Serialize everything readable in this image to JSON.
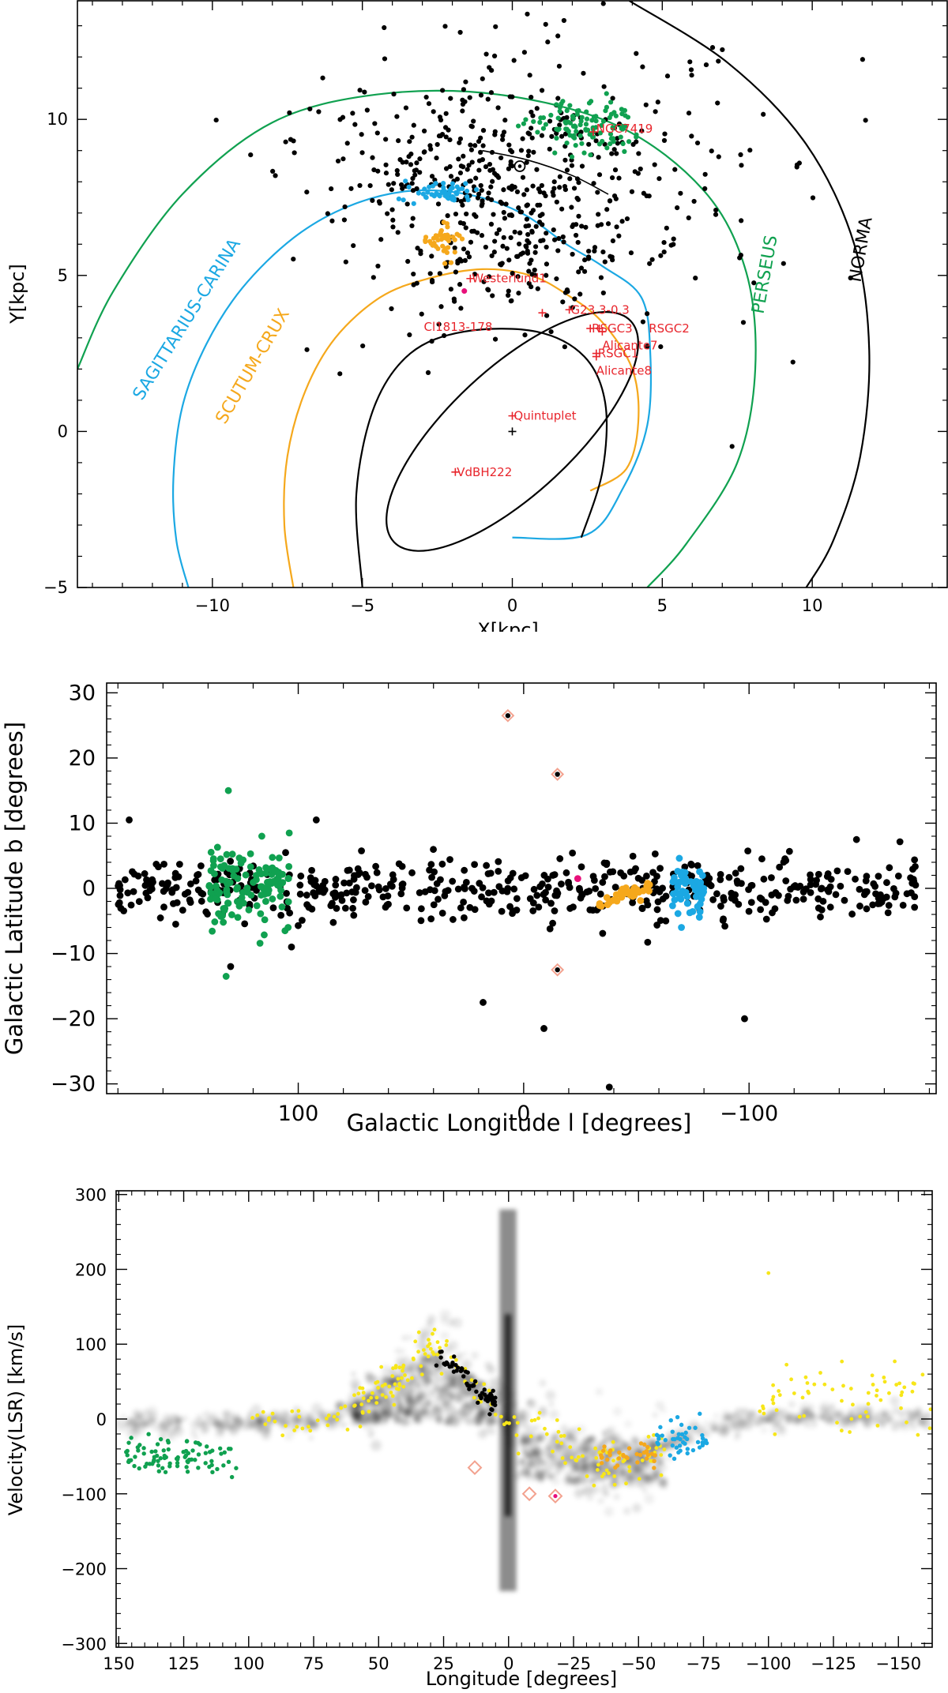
{
  "colors": {
    "black": "#000000",
    "green": "#10a150",
    "cyan": "#1ba8e3",
    "orange": "#f5a81c",
    "yellow": "#f7e619",
    "red": "#e8252c",
    "magenta": "#e8107a",
    "salmon": "#f3a28f"
  },
  "chart_data": [
    {
      "id": "galactic_map",
      "type": "scatter",
      "title": "",
      "xlabel": "X[kpc]",
      "ylabel": "Y[kpc]",
      "xlim": [
        -14.5,
        14.5
      ],
      "ylim": [
        -5.0,
        13.8
      ],
      "x_ticks": [
        -10,
        -5,
        0,
        5,
        10
      ],
      "y_ticks": [
        -5,
        0,
        5,
        10
      ],
      "arms": [
        {
          "name": "SAGITTARIUS-CARINA",
          "color": "cyan",
          "label_x": -10.7,
          "label_y": 3.5,
          "label_angle": -58,
          "path": [
            [
              -10.8,
              -5.0
            ],
            [
              -11.2,
              -3.5
            ],
            [
              -11.3,
              -1.5
            ],
            [
              -11.0,
              0.8
            ],
            [
              -10.2,
              2.8
            ],
            [
              -9.0,
              4.6
            ],
            [
              -7.3,
              6.2
            ],
            [
              -5.5,
              7.2
            ],
            [
              -3.5,
              7.7
            ],
            [
              -1.5,
              7.6
            ],
            [
              0.3,
              7.0
            ],
            [
              1.8,
              6.0
            ],
            [
              3.0,
              5.3
            ],
            [
              4.3,
              4.3
            ],
            [
              4.6,
              2.5
            ],
            [
              4.5,
              0.2
            ],
            [
              3.7,
              -1.8
            ],
            [
              2.5,
              -3.3
            ],
            [
              0.0,
              -3.4
            ]
          ]
        },
        {
          "name": "SCUTUM-CRUX",
          "color": "orange",
          "label_x": -8.5,
          "label_y": 2.0,
          "label_angle": -60,
          "path": [
            [
              -7.3,
              -5.0
            ],
            [
              -7.6,
              -3.0
            ],
            [
              -7.5,
              -0.8
            ],
            [
              -6.9,
              1.3
            ],
            [
              -5.9,
              3.0
            ],
            [
              -4.4,
              4.3
            ],
            [
              -2.8,
              4.9
            ],
            [
              -1.0,
              5.2
            ],
            [
              0.6,
              5.0
            ],
            [
              1.8,
              4.4
            ],
            [
              3.0,
              3.5
            ],
            [
              4.0,
              2.0
            ],
            [
              4.2,
              0.3
            ],
            [
              3.8,
              -1.2
            ],
            [
              2.6,
              -1.9
            ]
          ]
        },
        {
          "name": "PERSEUS",
          "color": "green",
          "label_x": 8.6,
          "label_y": 5.0,
          "label_angle": -80,
          "path": [
            [
              -14.5,
              2.0
            ],
            [
              -13.3,
              4.5
            ],
            [
              -11.0,
              7.6
            ],
            [
              -8.0,
              9.9
            ],
            [
              -4.5,
              10.8
            ],
            [
              -0.5,
              10.8
            ],
            [
              3.5,
              9.8
            ],
            [
              6.4,
              7.7
            ],
            [
              7.8,
              5.1
            ],
            [
              8.1,
              2.0
            ],
            [
              7.5,
              -1.0
            ],
            [
              5.8,
              -3.6
            ],
            [
              4.5,
              -5.0
            ]
          ]
        },
        {
          "name": "NORMA",
          "color": "black",
          "label_x": 11.8,
          "label_y": 5.8,
          "label_angle": -80,
          "path": [
            [
              3.9,
              13.8
            ],
            [
              7.2,
              11.8
            ],
            [
              9.8,
              9.2
            ],
            [
              11.4,
              6.0
            ],
            [
              11.9,
              2.6
            ],
            [
              11.6,
              -0.8
            ],
            [
              10.7,
              -3.5
            ],
            [
              9.8,
              -5.0
            ]
          ]
        },
        {
          "name": "inner",
          "color": "black",
          "label_x": null,
          "label_y": null,
          "label_angle": 0,
          "path": [
            [
              -5.0,
              -5.0
            ],
            [
              -5.2,
              -2.0
            ],
            [
              -4.6,
              0.8
            ],
            [
              -3.4,
              2.5
            ],
            [
              -1.6,
              3.2
            ],
            [
              0.8,
              3.2
            ],
            [
              2.4,
              2.4
            ],
            [
              3.1,
              0.9
            ],
            [
              3.0,
              -1.3
            ],
            [
              2.3,
              -3.4
            ]
          ]
        }
      ],
      "bar_ellipse": {
        "cx": 0.0,
        "cy": 0.0,
        "rx": 5.4,
        "ry": 2.0,
        "angle_deg": 43
      },
      "clusters": [
        {
          "name": "NGC7419",
          "x": 2.7,
          "y": 9.6,
          "label_dx": 0.1,
          "label_dy": 0.1
        },
        {
          "name": "Westerlund1",
          "x": -1.4,
          "y": 4.9,
          "label_dx": 0.05,
          "label_dy": 0.0
        },
        {
          "name": "Cl1813-178",
          "x": 1.0,
          "y": 3.8,
          "label_dx": -3.95,
          "label_dy": -0.45
        },
        {
          "name": "G23.3-0.3",
          "x": 1.9,
          "y": 3.9,
          "label_dx": 0.05,
          "label_dy": 0.0
        },
        {
          "name": "RSGC3",
          "x": 2.6,
          "y": 3.3,
          "label_dx": 0.05,
          "label_dy": 0.0
        },
        {
          "name": "RSGC2",
          "x": 2.9,
          "y": 3.3,
          "label_dx": 1.65,
          "label_dy": 0.0
        },
        {
          "name": "Alicante7",
          "x": 3.0,
          "y": 3.2,
          "label_dx": 0.0,
          "label_dy": -0.45
        },
        {
          "name": "RSGC1",
          "x": 2.8,
          "y": 2.5,
          "label_dx": 0.05,
          "label_dy": 0.0
        },
        {
          "name": "Alicante8",
          "x": 2.8,
          "y": 2.4,
          "label_dx": 0.0,
          "label_dy": -0.45
        },
        {
          "name": "Quintuplet",
          "x": 0.0,
          "y": 0.5,
          "label_dx": 0.05,
          "label_dy": 0.0
        },
        {
          "name": "VdBH222",
          "x": -1.9,
          "y": -1.3,
          "label_dx": 0.05,
          "label_dy": 0.0
        }
      ],
      "sun": {
        "x": 0.25,
        "y": 8.5
      },
      "center_marker": {
        "x": 0.0,
        "y": 0.0
      },
      "sun_arc": [
        [
          -1.0,
          9.0
        ],
        [
          0.5,
          8.7
        ],
        [
          2.0,
          8.2
        ],
        [
          3.2,
          7.6
        ]
      ],
      "series": [
        {
          "name": "black",
          "color": "black",
          "n": 620,
          "regions": [
            {
              "cx": 0.0,
              "cy": 6.3,
              "sx": 2.2,
              "sy": 1.4,
              "w": 0.4
            },
            {
              "cx": -1.2,
              "cy": 8.6,
              "sx": 2.6,
              "sy": 1.1,
              "w": 0.25
            },
            {
              "cx": 0.6,
              "cy": 9.5,
              "sx": 3.8,
              "sy": 1.8,
              "w": 0.2
            },
            {
              "cx": 1.5,
              "cy": 7.8,
              "sx": 4.2,
              "sy": 2.8,
              "w": 0.15
            }
          ]
        },
        {
          "name": "green",
          "color": "green",
          "n": 110,
          "regions": [
            {
              "cx": 2.4,
              "cy": 9.8,
              "sx": 0.9,
              "sy": 0.45,
              "w": 1
            }
          ]
        },
        {
          "name": "cyan",
          "color": "cyan",
          "n": 50,
          "regions": [
            {
              "cx": -2.4,
              "cy": 7.65,
              "sx": 0.55,
              "sy": 0.18,
              "w": 1
            }
          ]
        },
        {
          "name": "orange",
          "color": "orange",
          "n": 40,
          "regions": [
            {
              "cx": -2.3,
              "cy": 6.1,
              "sx": 0.35,
              "sy": 0.3,
              "w": 1
            }
          ]
        }
      ]
    },
    {
      "id": "galactic_lb",
      "type": "scatter",
      "title": "",
      "xlabel": "Galactic Longitude l [degrees]",
      "ylabel": "Galactic Latitude b [degrees]",
      "xlim": [
        185,
        -183
      ],
      "ylim": [
        -31.5,
        31.5
      ],
      "x_ticks": [
        100,
        0,
        -100
      ],
      "x_tick_labels": [
        "100",
        "0",
        "−100"
      ],
      "y_ticks": [
        -30,
        -20,
        -10,
        0,
        10,
        20,
        30
      ],
      "y_tick_labels": [
        "−30",
        "−20",
        "−10",
        "0",
        "10",
        "20",
        "30"
      ],
      "series": [
        {
          "name": "black",
          "color": "black",
          "n": 520,
          "l_range": [
            -175,
            180
          ],
          "b_sigma": 2.2
        },
        {
          "name": "green",
          "color": "green",
          "n": 130,
          "l_range": [
            104,
            140
          ],
          "b_sigma": 2.8
        },
        {
          "name": "cyan",
          "color": "cyan",
          "n": 55,
          "l_range": [
            -66,
            -80
          ],
          "b_sigma": 2.0
        },
        {
          "name": "orange",
          "color": "orange",
          "n": 35,
          "l_range": [
            -33,
            -56
          ],
          "b_sigma": 0.8
        }
      ],
      "outliers": [
        {
          "l": 131,
          "b": 15,
          "color": "green"
        },
        {
          "l": 132,
          "b": -13.5,
          "color": "green"
        },
        {
          "l": 104,
          "b": 8.5,
          "color": "green"
        },
        {
          "l": 130,
          "b": -12,
          "color": "black"
        },
        {
          "l": 92,
          "b": 10.5,
          "color": "black"
        },
        {
          "l": 103,
          "b": -9,
          "color": "black"
        },
        {
          "l": 175,
          "b": 10.5,
          "color": "black"
        },
        {
          "l": 18,
          "b": -17.5,
          "color": "black"
        },
        {
          "l": -9,
          "b": -21.5,
          "color": "black"
        },
        {
          "l": -38,
          "b": -30.5,
          "color": "black"
        },
        {
          "l": -98,
          "b": -20,
          "color": "black"
        },
        {
          "l": -70,
          "b": -6,
          "color": "cyan"
        },
        {
          "l": -24,
          "b": 1.5,
          "color": "magenta"
        }
      ],
      "specials": [
        {
          "l": 7,
          "b": 26.5
        },
        {
          "l": -15,
          "b": 17.5
        },
        {
          "l": -15,
          "b": -12.5
        }
      ]
    },
    {
      "id": "lv_diagram",
      "type": "scatter",
      "title": "",
      "xlabel": "Longitude [degrees]",
      "ylabel": "Velocity(LSR) [km/s]",
      "xlim": [
        151,
        -163
      ],
      "ylim": [
        -305,
        305
      ],
      "x_ticks": [
        150,
        125,
        100,
        75,
        50,
        25,
        0,
        -25,
        -50,
        -75,
        -100,
        -125,
        -150
      ],
      "x_tick_labels": [
        "150",
        "125",
        "100",
        "75",
        "50",
        "25",
        "0",
        "−25",
        "−50",
        "−75",
        "−100",
        "−125",
        "−150"
      ],
      "y_ticks": [
        -300,
        -200,
        -100,
        0,
        100,
        200,
        300
      ],
      "y_tick_labels": [
        "−300",
        "−200",
        "−100",
        "0",
        "100",
        "200",
        "300"
      ],
      "background_lv": [
        [
          150,
          -5
        ],
        [
          120,
          -10
        ],
        [
          100,
          -5
        ],
        [
          85,
          -2
        ],
        [
          70,
          0
        ],
        [
          55,
          25
        ],
        [
          40,
          60
        ],
        [
          30,
          100
        ],
        [
          20,
          70
        ],
        [
          10,
          30
        ],
        [
          0,
          0
        ],
        [
          -10,
          -20
        ],
        [
          -20,
          -40
        ],
        [
          -35,
          -60
        ],
        [
          -50,
          -55
        ],
        [
          -65,
          -30
        ],
        [
          -80,
          -5
        ],
        [
          -100,
          0
        ],
        [
          -120,
          5
        ],
        [
          -150,
          0
        ]
      ],
      "series": [
        {
          "name": "yellow",
          "color": "yellow",
          "n": 260
        },
        {
          "name": "green",
          "color": "green",
          "n": 90,
          "l_range": [
            104,
            148
          ],
          "v_center": -50,
          "v_sigma": 12
        },
        {
          "name": "cyan",
          "color": "cyan",
          "n": 45,
          "l_range": [
            -57,
            -77
          ],
          "v_center": -25,
          "v_sigma": 12
        },
        {
          "name": "orange",
          "color": "orange",
          "n": 35,
          "l_range": [
            -35,
            -57
          ],
          "v_center": -48,
          "v_sigma": 8
        },
        {
          "name": "black",
          "color": "black",
          "n": 60,
          "l_range": [
            5,
            28
          ],
          "v_center": 15,
          "v_sigma": 12
        }
      ],
      "specials": [
        {
          "l": 13,
          "v": -65
        },
        {
          "l": -8,
          "v": -100
        },
        {
          "l": -18,
          "v": -103
        }
      ]
    }
  ]
}
